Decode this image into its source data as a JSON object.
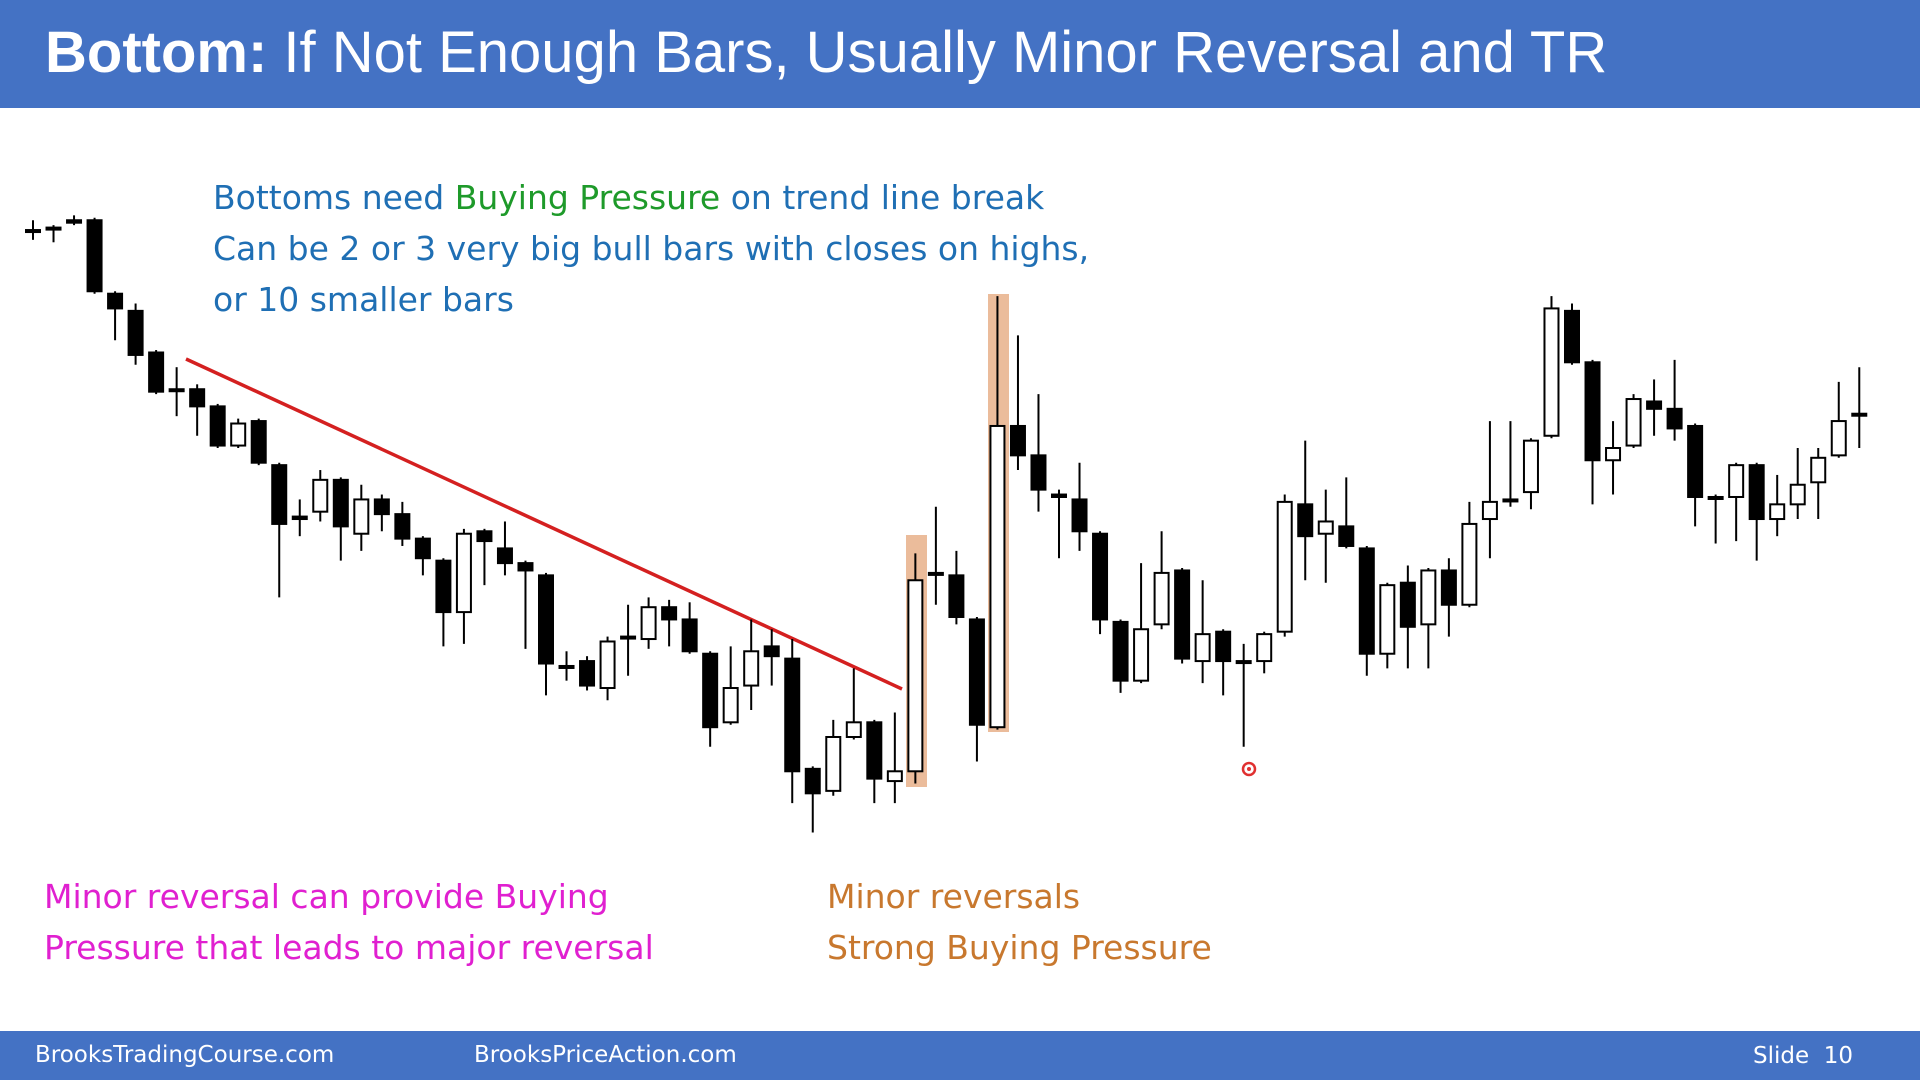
{
  "header": {
    "title_bold": "Bottom:",
    "title_rest": "If Not Enough Bars, Usually Minor Reversal and TR"
  },
  "notes": {
    "line1_a": "Bottoms need",
    "line1_b": "Buying Pressure",
    "line1_c": "on trend line break",
    "line2": "Can be 2 or 3 very big bull bars with closes on highs,",
    "line3": "or 10 smaller bars",
    "left1": "Minor reversal can provide Buying",
    "left2": "Pressure that leads to major reversal",
    "right1": "Minor reversals",
    "right2": "Strong Buying Pressure"
  },
  "chart_data": {
    "type": "candlestick",
    "ylim": [
      0,
      530
    ],
    "up_color": "#ffffff",
    "down_color": "#000000",
    "open": [
      512,
      514,
      520,
      520,
      460,
      446,
      412,
      382,
      382,
      368,
      336,
      356,
      320,
      278,
      282,
      308,
      264,
      292,
      280,
      260,
      242,
      200,
      266,
      252,
      240,
      230,
      156,
      160,
      138,
      180,
      178,
      204,
      194,
      166,
      110,
      140,
      172,
      162,
      72,
      54,
      98,
      110,
      62,
      70,
      232,
      230,
      194,
      106,
      352,
      328,
      296,
      292,
      264,
      192,
      144,
      190,
      234,
      160,
      184,
      160,
      160,
      184,
      288,
      264,
      270,
      252,
      166,
      224,
      190,
      234,
      206,
      276,
      292,
      298,
      344,
      446,
      404,
      324,
      336,
      372,
      366,
      352,
      294,
      294,
      320,
      276,
      288,
      306,
      328,
      362
    ],
    "high": [
      520,
      516,
      524,
      522,
      462,
      452,
      414,
      400,
      386,
      370,
      358,
      358,
      322,
      292,
      316,
      310,
      304,
      296,
      290,
      262,
      244,
      268,
      268,
      274,
      242,
      232,
      168,
      164,
      180,
      206,
      212,
      210,
      208,
      168,
      172,
      194,
      186,
      178,
      74,
      112,
      154,
      112,
      118,
      248,
      286,
      250,
      196,
      458,
      426,
      378,
      300,
      322,
      266,
      194,
      240,
      266,
      236,
      226,
      186,
      174,
      184,
      296,
      340,
      300,
      310,
      254,
      224,
      238,
      236,
      244,
      290,
      356,
      356,
      342,
      458,
      452,
      406,
      356,
      378,
      390,
      406,
      354,
      296,
      322,
      322,
      312,
      334,
      334,
      388,
      400
    ],
    "low": [
      504,
      502,
      516,
      460,
      422,
      402,
      378,
      360,
      344,
      334,
      334,
      320,
      212,
      262,
      274,
      242,
      250,
      266,
      254,
      230,
      172,
      174,
      222,
      230,
      170,
      132,
      144,
      136,
      128,
      148,
      170,
      172,
      166,
      90,
      108,
      120,
      140,
      44,
      20,
      50,
      96,
      44,
      44,
      60,
      206,
      190,
      78,
      104,
      316,
      282,
      244,
      250,
      182,
      134,
      142,
      186,
      158,
      142,
      132,
      90,
      150,
      180,
      226,
      224,
      252,
      148,
      154,
      154,
      154,
      180,
      204,
      244,
      286,
      284,
      342,
      402,
      288,
      296,
      334,
      344,
      340,
      270,
      256,
      258,
      242,
      262,
      276,
      276,
      326,
      334
    ],
    "close": [
      512,
      514,
      518,
      462,
      448,
      410,
      380,
      382,
      368,
      336,
      354,
      322,
      272,
      276,
      308,
      270,
      292,
      280,
      260,
      244,
      200,
      264,
      258,
      240,
      234,
      158,
      156,
      140,
      176,
      180,
      204,
      194,
      168,
      106,
      138,
      168,
      164,
      70,
      52,
      98,
      110,
      64,
      70,
      226,
      232,
      196,
      108,
      352,
      328,
      300,
      294,
      266,
      194,
      144,
      186,
      232,
      162,
      182,
      160,
      160,
      182,
      290,
      262,
      274,
      254,
      166,
      222,
      188,
      234,
      206,
      272,
      290,
      292,
      340,
      448,
      404,
      324,
      334,
      374,
      366,
      350,
      294,
      294,
      320,
      276,
      288,
      304,
      326,
      356,
      362
    ]
  },
  "footer": {
    "left": "BrooksTradingCourse.com",
    "middle": "BrooksPriceAction.com",
    "slide": "Slide  10"
  }
}
